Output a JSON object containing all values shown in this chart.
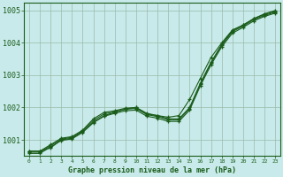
{
  "title": "Graphe pression niveau de la mer (hPa)",
  "bg_color": "#c8eaea",
  "plot_bg_color": "#c8eaea",
  "grid_color": "#99bbaa",
  "line_color": "#1a5c1a",
  "hours": [
    0,
    1,
    2,
    3,
    4,
    5,
    6,
    7,
    8,
    9,
    10,
    11,
    12,
    13,
    14,
    15,
    16,
    17,
    18,
    19,
    20,
    21,
    22,
    23
  ],
  "series": [
    [
      1000.65,
      1000.65,
      1000.75,
      1001.0,
      1001.05,
      1001.25,
      1001.55,
      1001.75,
      1001.85,
      1001.95,
      1002.0,
      1001.8,
      1001.75,
      1001.7,
      1001.75,
      1002.25,
      1002.9,
      1003.55,
      1004.0,
      1004.4,
      1004.55,
      1004.75,
      1004.9,
      1005.0
    ],
    [
      1000.65,
      1000.65,
      1000.85,
      1001.05,
      1001.1,
      1001.3,
      1001.65,
      1001.85,
      1001.9,
      1001.98,
      1002.0,
      1001.82,
      1001.75,
      1001.65,
      1001.65,
      1002.0,
      1002.75,
      1003.4,
      1003.95,
      1004.38,
      1004.55,
      1004.75,
      1004.88,
      1004.98
    ],
    [
      1000.62,
      1000.62,
      1000.82,
      1001.02,
      1001.08,
      1001.28,
      1001.6,
      1001.8,
      1001.87,
      1001.95,
      1001.97,
      1001.78,
      1001.72,
      1001.62,
      1001.62,
      1001.97,
      1002.72,
      1003.37,
      1003.93,
      1004.35,
      1004.52,
      1004.72,
      1004.85,
      1004.95
    ],
    [
      1000.58,
      1000.58,
      1000.78,
      1000.98,
      1001.03,
      1001.23,
      1001.53,
      1001.73,
      1001.82,
      1001.9,
      1001.92,
      1001.73,
      1001.67,
      1001.57,
      1001.57,
      1001.92,
      1002.67,
      1003.32,
      1003.88,
      1004.3,
      1004.48,
      1004.68,
      1004.82,
      1004.92
    ]
  ],
  "ylim": [
    1000.5,
    1005.25
  ],
  "yticks": [
    1001,
    1002,
    1003,
    1004,
    1005
  ],
  "xlim": [
    -0.5,
    23.5
  ],
  "xticks": [
    0,
    1,
    2,
    3,
    4,
    5,
    6,
    7,
    8,
    9,
    10,
    11,
    12,
    13,
    14,
    15,
    16,
    17,
    18,
    19,
    20,
    21,
    22,
    23
  ],
  "figsize": [
    3.2,
    2.0
  ],
  "dpi": 100
}
